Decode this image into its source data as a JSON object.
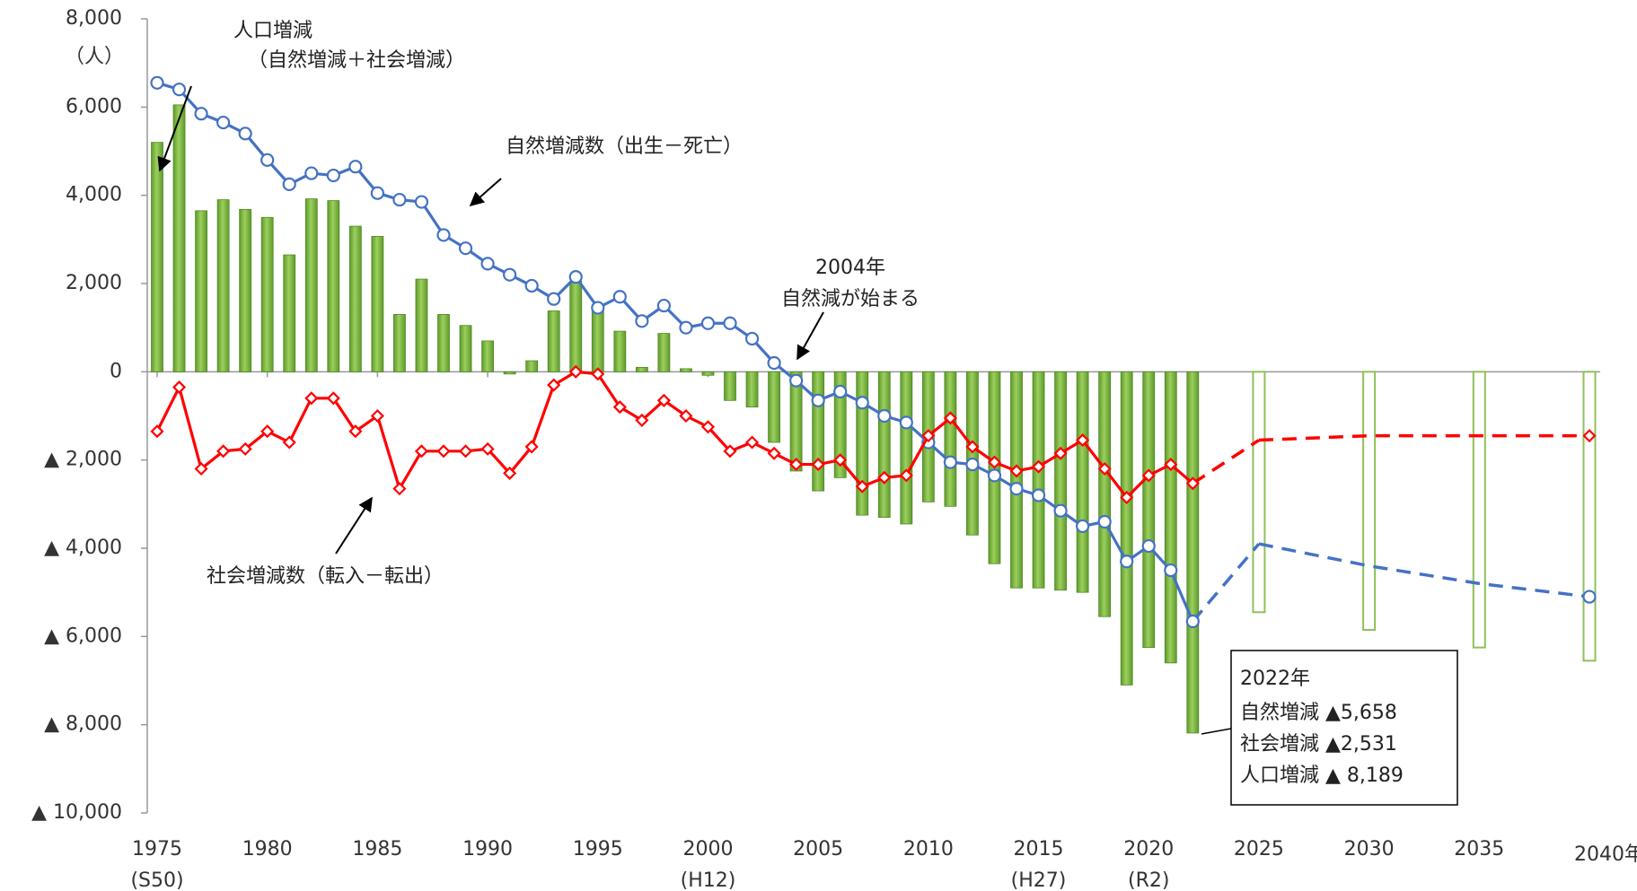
{
  "chart_data": {
    "type": "combo",
    "unit_label": "（人）",
    "x": [
      1975,
      1976,
      1977,
      1978,
      1979,
      1980,
      1981,
      1982,
      1983,
      1984,
      1985,
      1986,
      1987,
      1988,
      1989,
      1990,
      1991,
      1992,
      1993,
      1994,
      1995,
      1996,
      1997,
      1998,
      1999,
      2000,
      2001,
      2002,
      2003,
      2004,
      2005,
      2006,
      2007,
      2008,
      2009,
      2010,
      2011,
      2012,
      2013,
      2014,
      2015,
      2016,
      2017,
      2018,
      2019,
      2020,
      2021,
      2022
    ],
    "projection_x": [
      2025,
      2030,
      2035,
      2040
    ],
    "xlim": [
      1975,
      2040
    ],
    "xticks": [
      {
        "value": 1975,
        "label": "1975"
      },
      {
        "value": 1980,
        "label": "1980"
      },
      {
        "value": 1985,
        "label": "1985"
      },
      {
        "value": 1990,
        "label": "1990"
      },
      {
        "value": 1995,
        "label": "1995"
      },
      {
        "value": 2000,
        "label": "2000"
      },
      {
        "value": 2005,
        "label": "2005"
      },
      {
        "value": 2010,
        "label": "2010"
      },
      {
        "value": 2015,
        "label": "2015"
      },
      {
        "value": 2020,
        "label": "2020"
      },
      {
        "value": 2025,
        "label": "2025"
      },
      {
        "value": 2030,
        "label": "2030"
      },
      {
        "value": 2035,
        "label": "2035"
      },
      {
        "value": 2040,
        "label": "2040年"
      }
    ],
    "era_labels": [
      {
        "value": 1975,
        "label": "(S50)"
      },
      {
        "value": 2000,
        "label": "(H12)"
      },
      {
        "value": 2015,
        "label": "(H27)"
      },
      {
        "value": 2020,
        "label": "(R2)"
      }
    ],
    "ylim": [
      -10000,
      8000
    ],
    "yticks": [
      {
        "value": 8000,
        "label": "8,000"
      },
      {
        "value": 6000,
        "label": "6,000"
      },
      {
        "value": 4000,
        "label": "4,000"
      },
      {
        "value": 2000,
        "label": "2,000"
      },
      0,
      {
        "value": -2000,
        "label": "▲ 2,000"
      },
      {
        "value": -4000,
        "label": "▲ 4,000"
      },
      {
        "value": -6000,
        "label": "▲ 6,000"
      },
      {
        "value": -8000,
        "label": "▲ 8,000"
      },
      {
        "value": -10000,
        "label": "▲ 10,000"
      }
    ],
    "series": [
      {
        "type": "bar",
        "color": "#7ab648",
        "projection_color": "#8fc05a",
        "values": [
          5200,
          6050,
          3650,
          3900,
          3680,
          3500,
          2650,
          3920,
          3880,
          3300,
          3070,
          1300,
          2100,
          1300,
          1050,
          700,
          -50,
          250,
          1380,
          2050,
          1400,
          920,
          100,
          870,
          70,
          -80,
          -650,
          -800,
          -1600,
          -2250,
          -2700,
          -2400,
          -3250,
          -3300,
          -3450,
          -2950,
          -3050,
          -3700,
          -4350,
          -4900,
          -4900,
          -4950,
          -5000,
          -5550,
          -7100,
          -6250,
          -6600,
          -8189
        ],
        "projection": [
          -5450,
          -5850,
          -6250,
          -6550
        ]
      },
      {
        "type": "line",
        "color": "#4472c4",
        "marker": "circle",
        "values": [
          6550,
          6400,
          5850,
          5650,
          5400,
          4800,
          4250,
          4500,
          4450,
          4650,
          4050,
          3900,
          3850,
          3100,
          2800,
          2450,
          2200,
          1950,
          1650,
          2150,
          1450,
          1700,
          1150,
          1500,
          1000,
          1100,
          1100,
          750,
          200,
          -200,
          -650,
          -450,
          -700,
          -1000,
          -1150,
          -1600,
          -2050,
          -2100,
          -2350,
          -2650,
          -2800,
          -3150,
          -3500,
          -3400,
          -4300,
          -3950,
          -4500,
          -5658
        ],
        "projection": [
          -3900,
          -4400,
          -4800,
          -5100
        ]
      },
      {
        "type": "line",
        "color": "#ff0000",
        "marker": "diamond",
        "values": [
          -1350,
          -350,
          -2200,
          -1800,
          -1750,
          -1350,
          -1600,
          -600,
          -600,
          -1350,
          -1000,
          -2650,
          -1800,
          -1800,
          -1800,
          -1750,
          -2300,
          -1700,
          -300,
          0,
          -50,
          -800,
          -1100,
          -650,
          -1000,
          -1250,
          -1800,
          -1600,
          -1850,
          -2100,
          -2100,
          -2000,
          -2600,
          -2400,
          -2350,
          -1450,
          -1050,
          -1700,
          -2050,
          -2250,
          -2150,
          -1850,
          -1550,
          -2200,
          -2850,
          -2350,
          -2100,
          -2531
        ],
        "projection": [
          -1550,
          -1450,
          -1450,
          -1450
        ]
      }
    ],
    "annotations": {
      "population": [
        "人口増減",
        "（自然増減＋社会増減）"
      ],
      "natural": "自然増減数（出生－死亡）",
      "natural_start": [
        "2004年",
        "自然減が始まる"
      ],
      "social": "社会増減数（転入－転出）",
      "callout": [
        "2022年",
        "自然増減 ▲5,658",
        "社会増減 ▲2,531",
        "人口増減 ▲ 8,189"
      ]
    }
  }
}
